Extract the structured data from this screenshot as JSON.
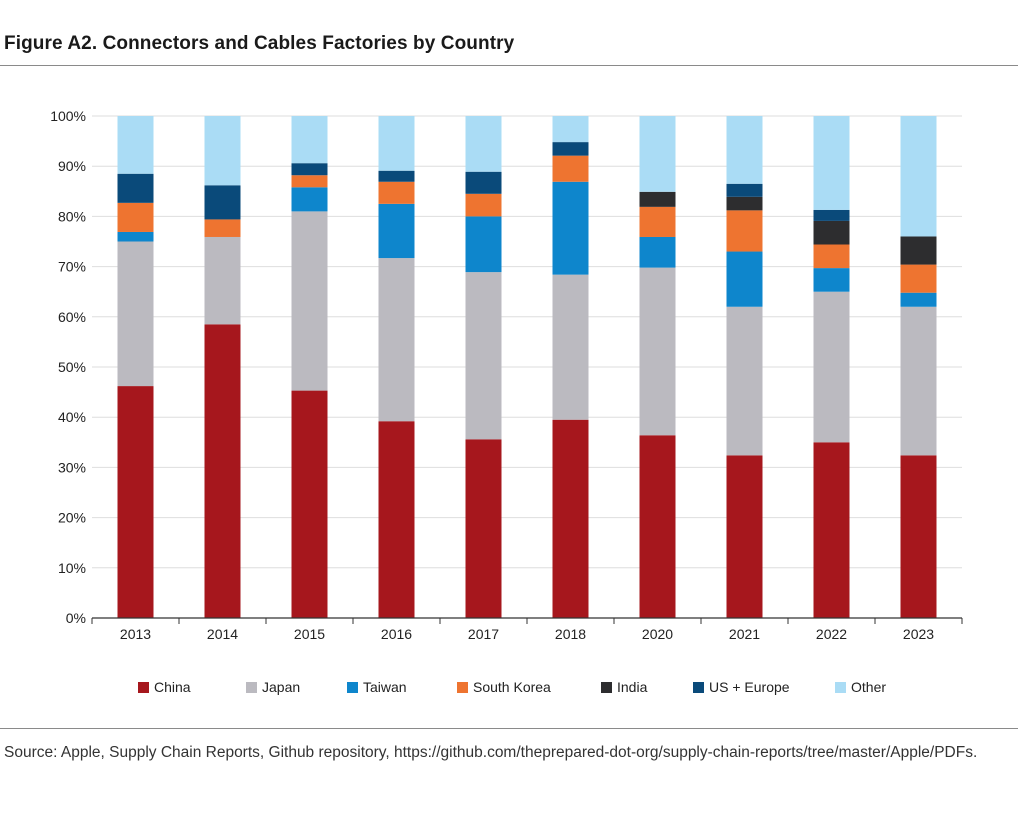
{
  "title": "Figure A2. Connectors and Cables Factories by Country",
  "source": "Source: Apple, Supply Chain Reports, Github repository, https://github.com/theprepared-dot-org/supply-chain-reports/tree/master/Apple/PDFs.",
  "chart_data": {
    "type": "bar",
    "stacked": true,
    "title": "Figure A2. Connectors and Cables Factories by Country",
    "xlabel": "",
    "ylabel": "",
    "ylim": [
      0,
      100
    ],
    "y_ticks": [
      "0%",
      "10%",
      "20%",
      "30%",
      "40%",
      "50%",
      "60%",
      "70%",
      "80%",
      "90%",
      "100%"
    ],
    "grid": true,
    "legend_position": "bottom",
    "categories": [
      "2013",
      "2014",
      "2015",
      "2016",
      "2017",
      "2018",
      "2020",
      "2021",
      "2022",
      "2023"
    ],
    "series": [
      {
        "name": "China",
        "color": "#a6171d",
        "values": [
          46.2,
          58.5,
          45.3,
          39.2,
          35.6,
          39.5,
          36.4,
          32.4,
          35.0,
          32.4
        ]
      },
      {
        "name": "Japan",
        "color": "#bbbac0",
        "values": [
          28.8,
          17.4,
          35.7,
          32.5,
          33.3,
          28.9,
          33.4,
          29.6,
          30.0,
          29.6
        ]
      },
      {
        "name": "Taiwan",
        "color": "#0e86cc",
        "values": [
          1.9,
          0.0,
          4.8,
          10.8,
          11.1,
          18.5,
          6.1,
          11.0,
          4.7,
          2.8
        ]
      },
      {
        "name": "South Korea",
        "color": "#ee7430",
        "values": [
          5.8,
          3.5,
          2.4,
          4.4,
          4.5,
          5.2,
          6.0,
          8.2,
          4.7,
          5.6
        ]
      },
      {
        "name": "India",
        "color": "#2d2d2f",
        "values": [
          0.0,
          0.0,
          0.0,
          0.0,
          0.0,
          0.0,
          3.0,
          2.7,
          4.7,
          5.6
        ]
      },
      {
        "name": "US + Europe",
        "color": "#0a4a7a",
        "values": [
          5.8,
          6.8,
          2.4,
          2.2,
          4.4,
          2.7,
          0.0,
          2.6,
          2.2,
          0.0
        ]
      },
      {
        "name": "Other",
        "color": "#aadcf5",
        "values": [
          11.5,
          13.8,
          9.4,
          10.9,
          11.1,
          5.2,
          15.1,
          13.5,
          18.7,
          24.0
        ]
      }
    ]
  }
}
